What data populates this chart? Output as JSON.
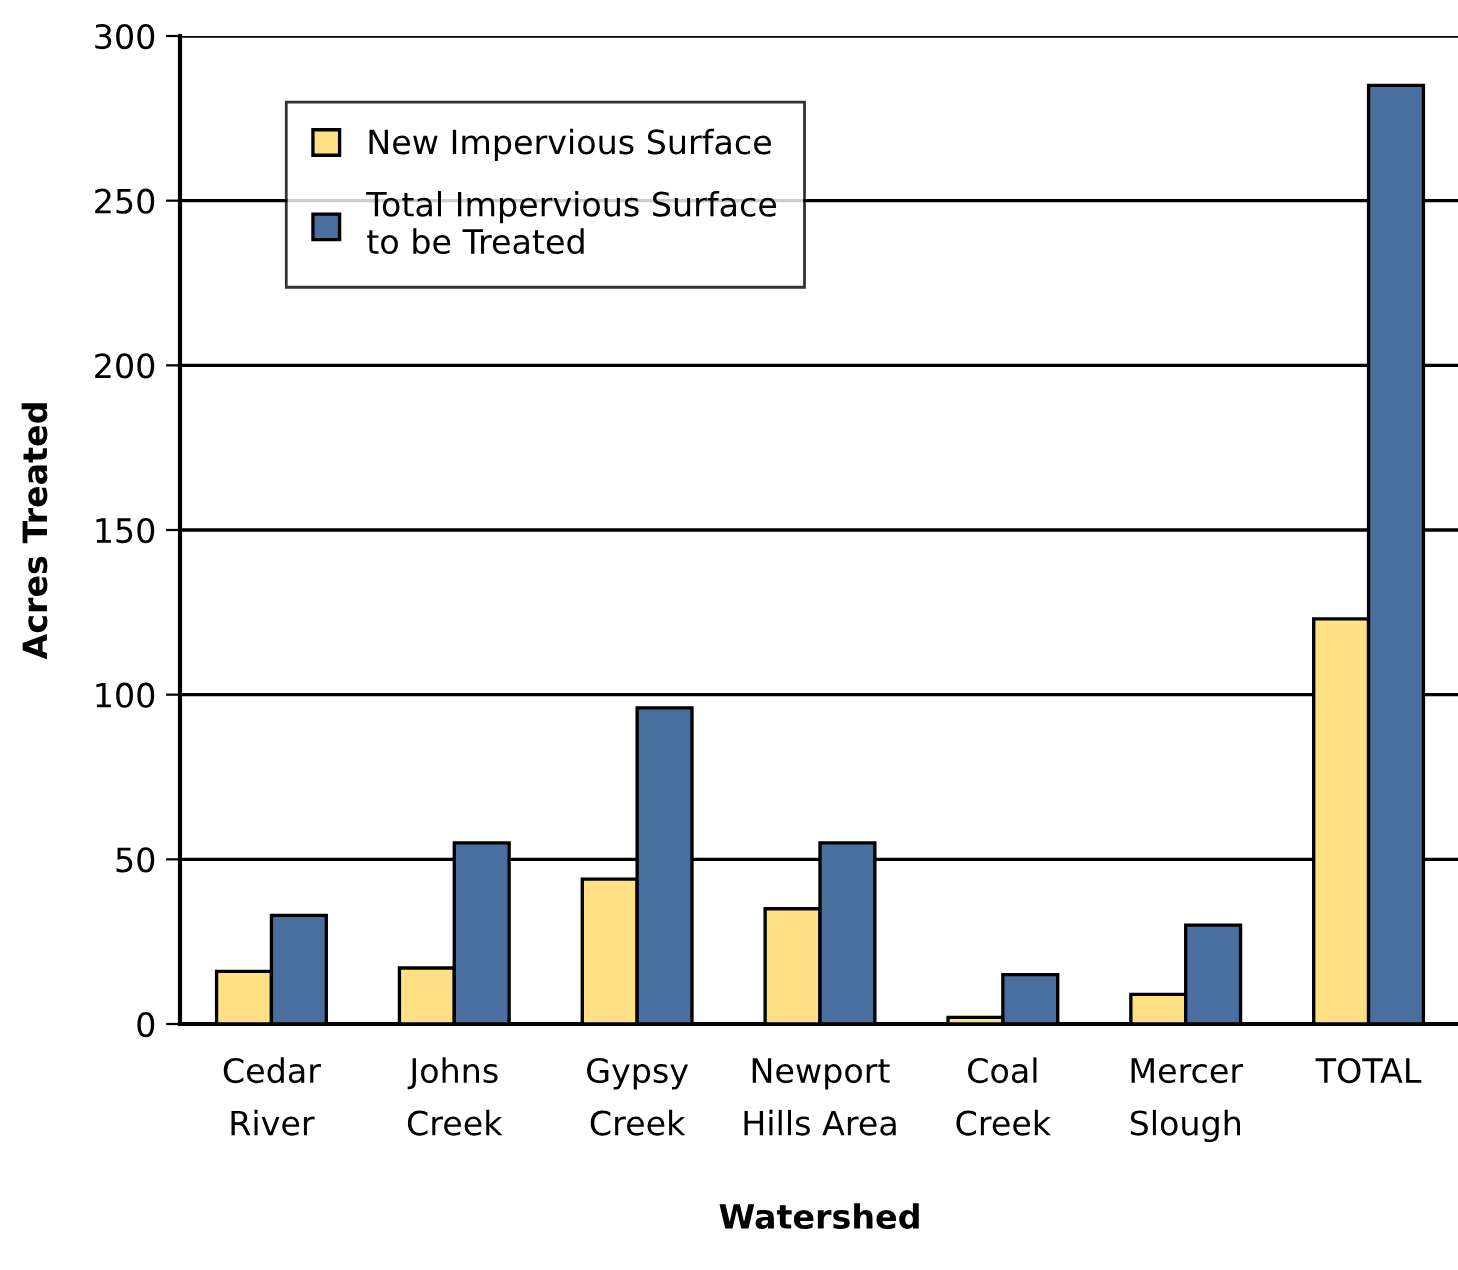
{
  "chart_data": {
    "type": "bar",
    "xlabel": "Watershed",
    "ylabel": "Acres Treated",
    "categories": [
      "Cedar\nRiver",
      "Johns\nCreek",
      "Gypsy\nCreek",
      "Newport\nHills Area",
      "Coal\nCreek",
      "Mercer\nSlough",
      "TOTAL"
    ],
    "series": [
      {
        "name": "New Impervious Surface",
        "color": "#ffe084",
        "values": [
          16,
          17,
          44,
          35,
          2,
          9,
          123
        ]
      },
      {
        "name": "Total Impervious Surface\nto be Treated",
        "color": "#4a6e9e",
        "values": [
          33,
          55,
          96,
          55,
          15,
          30,
          285
        ]
      }
    ],
    "ylim": [
      0,
      300
    ],
    "yticks": [
      0,
      50,
      100,
      150,
      200,
      250,
      300
    ],
    "grid": "y",
    "legend": "top left"
  }
}
